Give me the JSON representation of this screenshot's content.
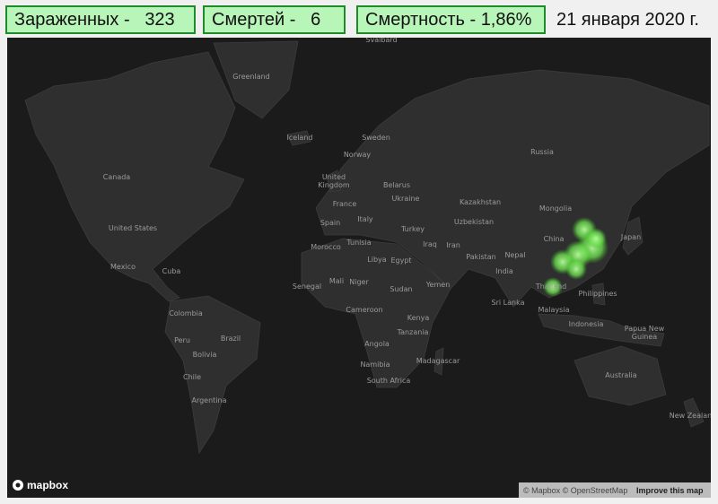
{
  "stats": [
    {
      "label": "Зараженных -",
      "value": 323
    },
    {
      "label": "Смертей -",
      "value": 6
    },
    {
      "label": "Смертность -",
      "value": "1,86%"
    }
  ],
  "date": "21 января 2020 г.",
  "map": {
    "labels": [
      "Svalbard",
      "Greenland",
      "Iceland",
      "Sweden",
      "Norway",
      "Canada",
      "United Kingdom",
      "Belarus",
      "Ukraine",
      "France",
      "Spain",
      "Italy",
      "Kazakhstan",
      "Mongolia",
      "Russia",
      "Uzbekistan",
      "Turkey",
      "Morocco",
      "Tunisia",
      "Iraq",
      "Iran",
      "China",
      "Japan",
      "Pakistan",
      "Nepal",
      "India",
      "Libya",
      "Egypt",
      "United States",
      "Mexico",
      "Cuba",
      "Senegal",
      "Mali",
      "Niger",
      "Sudan",
      "Yemen",
      "Thailand",
      "Philippines",
      "Sri Lanka",
      "Malaysia",
      "Cameroon",
      "Colombia",
      "Kenya",
      "Papua New Guinea",
      "Indonesia",
      "Tanzania",
      "Peru",
      "Brazil",
      "Bolivia",
      "Angola",
      "Madagascar",
      "Namibia",
      "South Africa",
      "Chile",
      "Argentina",
      "Australia",
      "New Zealand"
    ],
    "logo": "mapbox",
    "attribution": "© Mapbox © OpenStreetMap",
    "improve_link": "Improve this map"
  }
}
